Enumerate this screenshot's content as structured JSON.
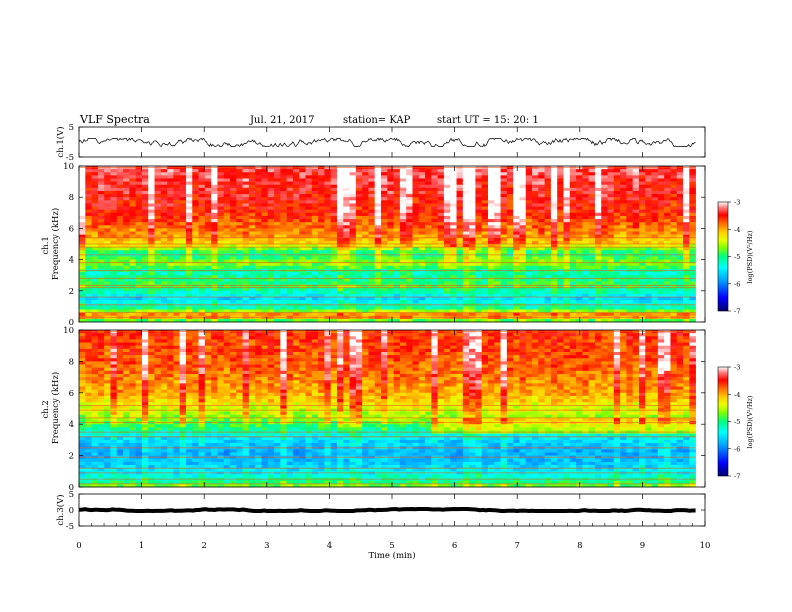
{
  "header": {
    "title": "VLF Spectra",
    "date": "Jul. 21, 2017",
    "station": "station= KAP",
    "start_ut": "start UT =  15: 20: 1"
  },
  "colors": {
    "spectrogram_scale": [
      "#00006e",
      "#0000ff",
      "#00a0ff",
      "#00ffff",
      "#00ff80",
      "#80ff00",
      "#e6ff00",
      "#ffd000",
      "#ff7000",
      "#ff0000",
      "#ff8080",
      "#ffffff"
    ],
    "waveform": "#000000"
  },
  "chart_data": [
    {
      "type": "line",
      "name": "ch1-waveform",
      "ylabel": "ch.1(V)",
      "ylim": [
        -5,
        5
      ],
      "y_ticks": [
        5,
        -5
      ],
      "y_tick_labels": [
        "5",
        "-5"
      ],
      "x_range": [
        0,
        10
      ],
      "data_extent_min": 9.85,
      "waveform_band_volts": [
        -1.5,
        1.2
      ]
    },
    {
      "type": "heatmap",
      "name": "ch1-spectrogram",
      "ylabel": "ch.1\nFrequency (kHz)",
      "ylim": [
        0,
        10
      ],
      "y_ticks": [
        0,
        2,
        4,
        6,
        8,
        10
      ],
      "y_tick_labels": [
        "0",
        "2",
        "4",
        "6",
        "8",
        "10"
      ],
      "x_range": [
        0,
        10
      ],
      "data_extent_min": 9.85,
      "colorbar": {
        "label": "log(PSD)(V²/Hz)",
        "range": [
          -7,
          -3
        ],
        "ticks": [
          -3,
          -4,
          -5,
          -6,
          -7
        ],
        "tick_labels": [
          "-3",
          "-4",
          "-5",
          "-6",
          "-7"
        ]
      },
      "intensity_profile_khz": [
        [
          0,
          -5.2
        ],
        [
          0.4,
          -3.6
        ],
        [
          0.8,
          -5.0
        ],
        [
          1.5,
          -5.6
        ],
        [
          2.3,
          -4.9
        ],
        [
          3.2,
          -5.2
        ],
        [
          3.8,
          -4.6
        ],
        [
          4.4,
          -5.1
        ],
        [
          5.0,
          -4.2
        ],
        [
          5.6,
          -3.9
        ],
        [
          7.0,
          -3.55
        ],
        [
          10.0,
          -3.3
        ]
      ],
      "line_interference_khz": [
        0.3,
        0.6,
        1.1,
        1.6,
        2.2,
        2.35,
        2.8,
        3.3,
        3.8,
        4.3,
        4.8,
        5.0,
        5.4,
        9.9
      ]
    },
    {
      "type": "heatmap",
      "name": "ch2-spectrogram",
      "ylabel": "ch.2\nFrequency (kHz)",
      "ylim": [
        0,
        10
      ],
      "y_ticks": [
        0,
        2,
        4,
        6,
        8,
        10
      ],
      "y_tick_labels": [
        "0",
        "2",
        "4",
        "6",
        "8",
        "10"
      ],
      "x_range": [
        0,
        10
      ],
      "data_extent_min": 9.85,
      "colorbar": {
        "label": "log(PSD)(V²/Hz)",
        "range": [
          -7,
          -3
        ],
        "ticks": [
          -3,
          -4,
          -5,
          -6,
          -7
        ],
        "tick_labels": [
          "-3",
          "-4",
          "-5",
          "-6",
          "-7"
        ]
      },
      "intensity_profile_khz": [
        [
          0,
          -4.6
        ],
        [
          0.3,
          -5.0
        ],
        [
          0.8,
          -5.4
        ],
        [
          1.5,
          -5.7
        ],
        [
          2.2,
          -5.8
        ],
        [
          3.0,
          -5.6
        ],
        [
          3.6,
          -5.1
        ],
        [
          4.2,
          -4.7
        ],
        [
          5.0,
          -4.4
        ],
        [
          6.0,
          -4.0
        ],
        [
          8.0,
          -3.7
        ],
        [
          10.0,
          -3.6
        ]
      ],
      "line_interference_khz": [
        0.2,
        0.5,
        0.9,
        1.2,
        1.9,
        2.5,
        3.2,
        3.5,
        4.1,
        4.4,
        4.9,
        5.2,
        9.9
      ]
    },
    {
      "type": "line",
      "name": "ch3-waveform",
      "ylabel": "ch.3(V)",
      "ylim": [
        -5,
        5
      ],
      "y_ticks": [
        5,
        0,
        -5
      ],
      "y_tick_labels": [
        "5",
        "0",
        "-5"
      ],
      "x_range": [
        0,
        10
      ],
      "data_extent_min": 9.85,
      "waveform_band_volts": [
        -0.3,
        0.3
      ]
    }
  ],
  "x_axis": {
    "label": "Time (min)",
    "ticks": [
      0,
      1,
      2,
      3,
      4,
      5,
      6,
      7,
      8,
      9,
      10
    ],
    "tick_labels": [
      "0",
      "1",
      "2",
      "3",
      "4",
      "5",
      "6",
      "7",
      "8",
      "9",
      "10"
    ]
  }
}
